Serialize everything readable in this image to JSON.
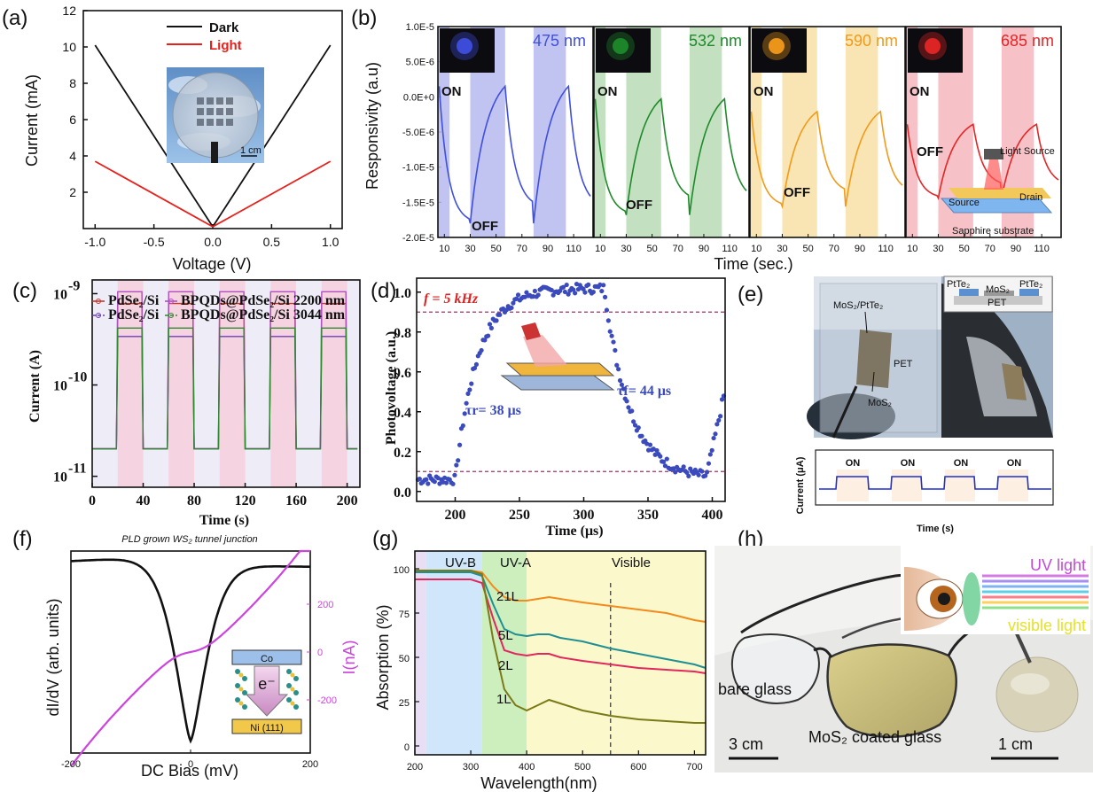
{
  "panels": {
    "a": "(a)",
    "b": "(b)",
    "c": "(c)",
    "d": "(d)",
    "e": "(e)",
    "f": "(f)",
    "g": "(g)",
    "h": "(h)"
  },
  "chart_data": [
    {
      "id": "a",
      "type": "line",
      "xlabel": "Voltage (V)",
      "ylabel": "Current (mA)",
      "xlim": [
        -1.1,
        1.1
      ],
      "ylim": [
        0,
        12
      ],
      "xticks": [
        "-1.0",
        "-0.5",
        "0.0",
        "0.5",
        "1.0"
      ],
      "yticks": [
        "2",
        "4",
        "6",
        "8",
        "10",
        "12"
      ],
      "series": [
        {
          "name": "Dark",
          "color": "#111111",
          "x": [
            -1.0,
            0.0,
            1.0
          ],
          "y": [
            10.1,
            0.1,
            10.1
          ]
        },
        {
          "name": "Light",
          "color": "#e8201c",
          "x": [
            -1.0,
            0.0,
            1.0
          ],
          "y": [
            3.7,
            0.1,
            3.7
          ]
        }
      ],
      "inset_scale": "1 cm"
    },
    {
      "id": "b",
      "type": "line",
      "xlabel": "Time (sec.)",
      "ylabel": "Responsivity (a.u)",
      "ylim": [
        -2e-05,
        1e-05
      ],
      "yticks": [
        "1.0E-5",
        "5.0E-6",
        "0.0E+0",
        "-5.0E-6",
        "-1.0E-5",
        "-1.5E-5",
        "-2.0E-5"
      ],
      "xticks": [
        "10",
        "30",
        "50",
        "70",
        "90",
        "110"
      ],
      "xlim": [
        5,
        125
      ],
      "subplots": [
        {
          "wavelength": "475 nm",
          "color": "#3f4fe0",
          "shade": "#b6b8ef"
        },
        {
          "wavelength": "532 nm",
          "color": "#1f8a2a",
          "shade": "#b8dcb6"
        },
        {
          "wavelength": "590 nm",
          "color": "#f29a1a",
          "shade": "#f7e1a6"
        },
        {
          "wavelength": "685 nm",
          "color": "#e52626",
          "shade": "#f5b7bd"
        }
      ],
      "on_windows": [
        [
          5,
          14
        ],
        [
          30,
          57
        ],
        [
          79,
          104
        ]
      ],
      "annotations": [
        "ON",
        "OFF",
        "OFF",
        "OFF",
        "Light Source",
        "Drain",
        "Source",
        "Sapphire substrate"
      ]
    },
    {
      "id": "c",
      "type": "line",
      "xlabel": "Time (s)",
      "ylabel": "Current (A)",
      "yscale": "log",
      "xlim": [
        0,
        210
      ],
      "ylim_exp": [
        -11,
        -8.85
      ],
      "xticks": [
        "0",
        "40",
        "80",
        "120",
        "160",
        "200"
      ],
      "on_windows": [
        [
          20,
          40
        ],
        [
          60,
          80
        ],
        [
          100,
          120
        ],
        [
          140,
          160
        ],
        [
          180,
          200
        ]
      ],
      "off_level": 2e-11,
      "series": [
        {
          "name": "PdSe₂/Si",
          "color": "#c0392b",
          "on_level": 7.8e-10
        },
        {
          "name": "BPQDs@PdSe₂/Si 2200 nm",
          "color": "#b04fc0",
          "on_level": 1.05e-09
        },
        {
          "name": "PdSe₂/Si",
          "color": "#6a3fb5",
          "on_level": 3.4e-10
        },
        {
          "name": "BPQDs@PdSe₂/Si 3044 nm",
          "color": "#2f8a2f",
          "on_level": 4.2e-10
        }
      ],
      "legend": [
        "PdSe₂/Si",
        "BPQDs@PdSe₂/Si 2200 nm",
        "PdSe₂/Si",
        "BPQDs@PdSe₂/Si 3044 nm"
      ]
    },
    {
      "id": "d",
      "type": "scatter",
      "xlabel": "Time (μs)",
      "ylabel": "Photovoltage (a.u.)",
      "xlim": [
        170,
        410
      ],
      "ylim": [
        -0.05,
        1.07
      ],
      "xticks": [
        "200",
        "250",
        "300",
        "350",
        "400"
      ],
      "yticks": [
        "0.0",
        "0.2",
        "0.4",
        "0.6",
        "0.8",
        "1.0"
      ],
      "hlines": [
        0.9,
        0.1
      ],
      "annotations": {
        "freq": "f = 5 kHz",
        "rise": "τr= 38 μs",
        "fall": "τf= 44 μs"
      },
      "rise_start": 200,
      "fall_start": 316,
      "tau_rise": 38,
      "tau_fall": 44,
      "color": "#3b4bbd"
    },
    {
      "id": "e",
      "type": "line",
      "xlabel": "Time (s)",
      "ylabel": "Current (μA)",
      "labels": [
        "ON",
        "ON",
        "ON",
        "ON"
      ],
      "photo_labels": {
        "stack": "MoS₂/PtTe₂",
        "pet": "PET",
        "mos2": "MoS₂",
        "pt1": "PtTe₂",
        "pt2": "PtTe₂",
        "mos2b": "MoS₂",
        "petb": "PET"
      },
      "color": "#1f2fd0"
    },
    {
      "id": "f",
      "type": "line",
      "title": "PLD grown WS₂ tunnel junction",
      "xlabel": "DC Bias (mV)",
      "ylabel_left": "dI/dV (arb. units)",
      "ylabel_right": "I(nA)",
      "xlim": [
        -200,
        200
      ],
      "xticks": [
        "-200",
        "0",
        "200"
      ],
      "right_ticks": [
        "200",
        "0",
        "-200"
      ],
      "series": [
        {
          "name": "dI/dV",
          "color": "#111111"
        },
        {
          "name": "I",
          "color": "#cc44dd"
        }
      ],
      "inset": {
        "top": "Co",
        "bottom": "Ni (111)",
        "electron": "e⁻"
      }
    },
    {
      "id": "g",
      "type": "line",
      "xlabel": "Wavelength(nm)",
      "ylabel": "Absorption (%)",
      "xlim": [
        200,
        720
      ],
      "ylim": [
        -5,
        110
      ],
      "xticks": [
        "200",
        "300",
        "400",
        "500",
        "600",
        "700"
      ],
      "yticks": [
        "0",
        "25",
        "50",
        "75",
        "100"
      ],
      "regions": [
        {
          "name": "UV-B",
          "x": [
            220,
            320
          ],
          "color": "#cfe6fb"
        },
        {
          "name": "UV-A",
          "x": [
            320,
            400
          ],
          "color": "#cdeebd"
        },
        {
          "name": "Visible",
          "x": [
            400,
            720
          ],
          "color": "#fbf8cc"
        }
      ],
      "dashed_x": 550,
      "series": [
        {
          "name": "21L",
          "color": "#f28a1c",
          "x": [
            200,
            300,
            320,
            340,
            360,
            380,
            400,
            420,
            440,
            460,
            500,
            550,
            600,
            650,
            700,
            720
          ],
          "y": [
            99,
            99,
            98,
            90,
            84,
            82,
            82,
            83,
            84,
            83,
            81,
            79,
            77,
            75,
            71,
            70
          ]
        },
        {
          "name": "5L",
          "color": "#1f8f93",
          "x": [
            200,
            300,
            320,
            340,
            360,
            380,
            400,
            420,
            440,
            460,
            500,
            550,
            600,
            650,
            700,
            720
          ],
          "y": [
            98,
            98,
            96,
            80,
            66,
            63,
            62,
            63,
            63,
            61,
            59,
            55,
            52,
            49,
            46,
            44
          ]
        },
        {
          "name": "2L",
          "color": "#e2275d",
          "x": [
            200,
            300,
            320,
            340,
            360,
            380,
            400,
            420,
            440,
            460,
            500,
            550,
            600,
            650,
            700,
            720
          ],
          "y": [
            94,
            94,
            92,
            72,
            54,
            52,
            51,
            52,
            52,
            50,
            48,
            46,
            44,
            43,
            42,
            41
          ]
        },
        {
          "name": "1L",
          "color": "#7a7a18",
          "x": [
            200,
            300,
            320,
            340,
            360,
            380,
            400,
            420,
            440,
            460,
            500,
            550,
            600,
            650,
            700,
            720
          ],
          "y": [
            99,
            99,
            97,
            60,
            32,
            23,
            20,
            23,
            26,
            24,
            20,
            17,
            15,
            14,
            13,
            13
          ]
        }
      ]
    },
    {
      "id": "h",
      "type": "table",
      "labels": {
        "bare": "bare glass",
        "coated": "MoS₂ coated glass",
        "scale1": "3 cm",
        "scale2": "1 cm",
        "uv": "UV light",
        "vis": "visible light"
      }
    }
  ]
}
